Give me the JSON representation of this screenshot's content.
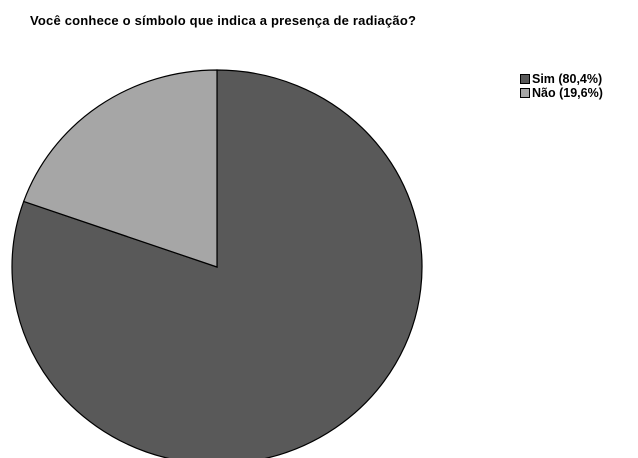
{
  "chart_data": {
    "type": "pie",
    "title": "Você conhece o símbolo que indica a presença de radiação?",
    "slices": [
      {
        "label": "Sim (80,4%)",
        "value": 80.4,
        "color": "#595959"
      },
      {
        "label": "Não (19,6%)",
        "value": 19.6,
        "color": "#a6a6a6"
      }
    ],
    "legend_position": "top-right",
    "outline_color": "#000000"
  }
}
